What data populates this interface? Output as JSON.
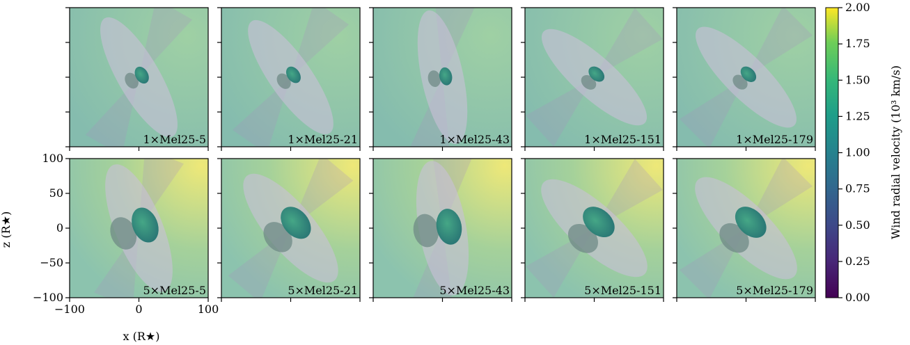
{
  "chart_data": {
    "type": "heatmap",
    "rows": 2,
    "cols": 5,
    "panels": [
      {
        "label": "1×Mel25-5",
        "tilt": 30
      },
      {
        "label": "1×Mel25-21",
        "tilt": 35
      },
      {
        "label": "1×Mel25-43",
        "tilt": 12
      },
      {
        "label": "1×Mel25-151",
        "tilt": 48
      },
      {
        "label": "1×Mel25-179",
        "tilt": 45
      },
      {
        "label": "5×Mel25-5",
        "tilt": 22
      },
      {
        "label": "5×Mel25-21",
        "tilt": 40
      },
      {
        "label": "5×Mel25-43",
        "tilt": 10
      },
      {
        "label": "5×Mel25-151",
        "tilt": 48
      },
      {
        "label": "5×Mel25-179",
        "tilt": 45
      }
    ],
    "xlabel": "x (R★)",
    "ylabel": "z (R★)",
    "xlim": [
      -100,
      100
    ],
    "ylim": [
      -100,
      100
    ],
    "x_ticks": [
      -100,
      0,
      100
    ],
    "x_tick_labels": [
      "−100",
      "0",
      "100"
    ],
    "y_ticks": [
      -100,
      -50,
      0,
      50,
      100
    ],
    "y_tick_labels": [
      "−100",
      "−50",
      "0",
      "50",
      "100"
    ],
    "colorbar": {
      "label": "Wind radial velocity (10³ km/s)",
      "colormap": "viridis",
      "range": [
        0.0,
        2.0
      ],
      "ticks": [
        0.0,
        0.25,
        0.5,
        0.75,
        1.0,
        1.25,
        1.5,
        1.75,
        2.0
      ],
      "tick_labels": [
        "0.00",
        "0.25",
        "0.50",
        "0.75",
        "1.00",
        "1.25",
        "1.50",
        "1.75",
        "2.00"
      ]
    },
    "background_color_row1": "#8fc4ae",
    "background_color_row2": "#a8d29c",
    "accent_yellow": "#f5ec6a",
    "shell_color": "#c9c0d8",
    "core_color": "#2a7d78"
  }
}
